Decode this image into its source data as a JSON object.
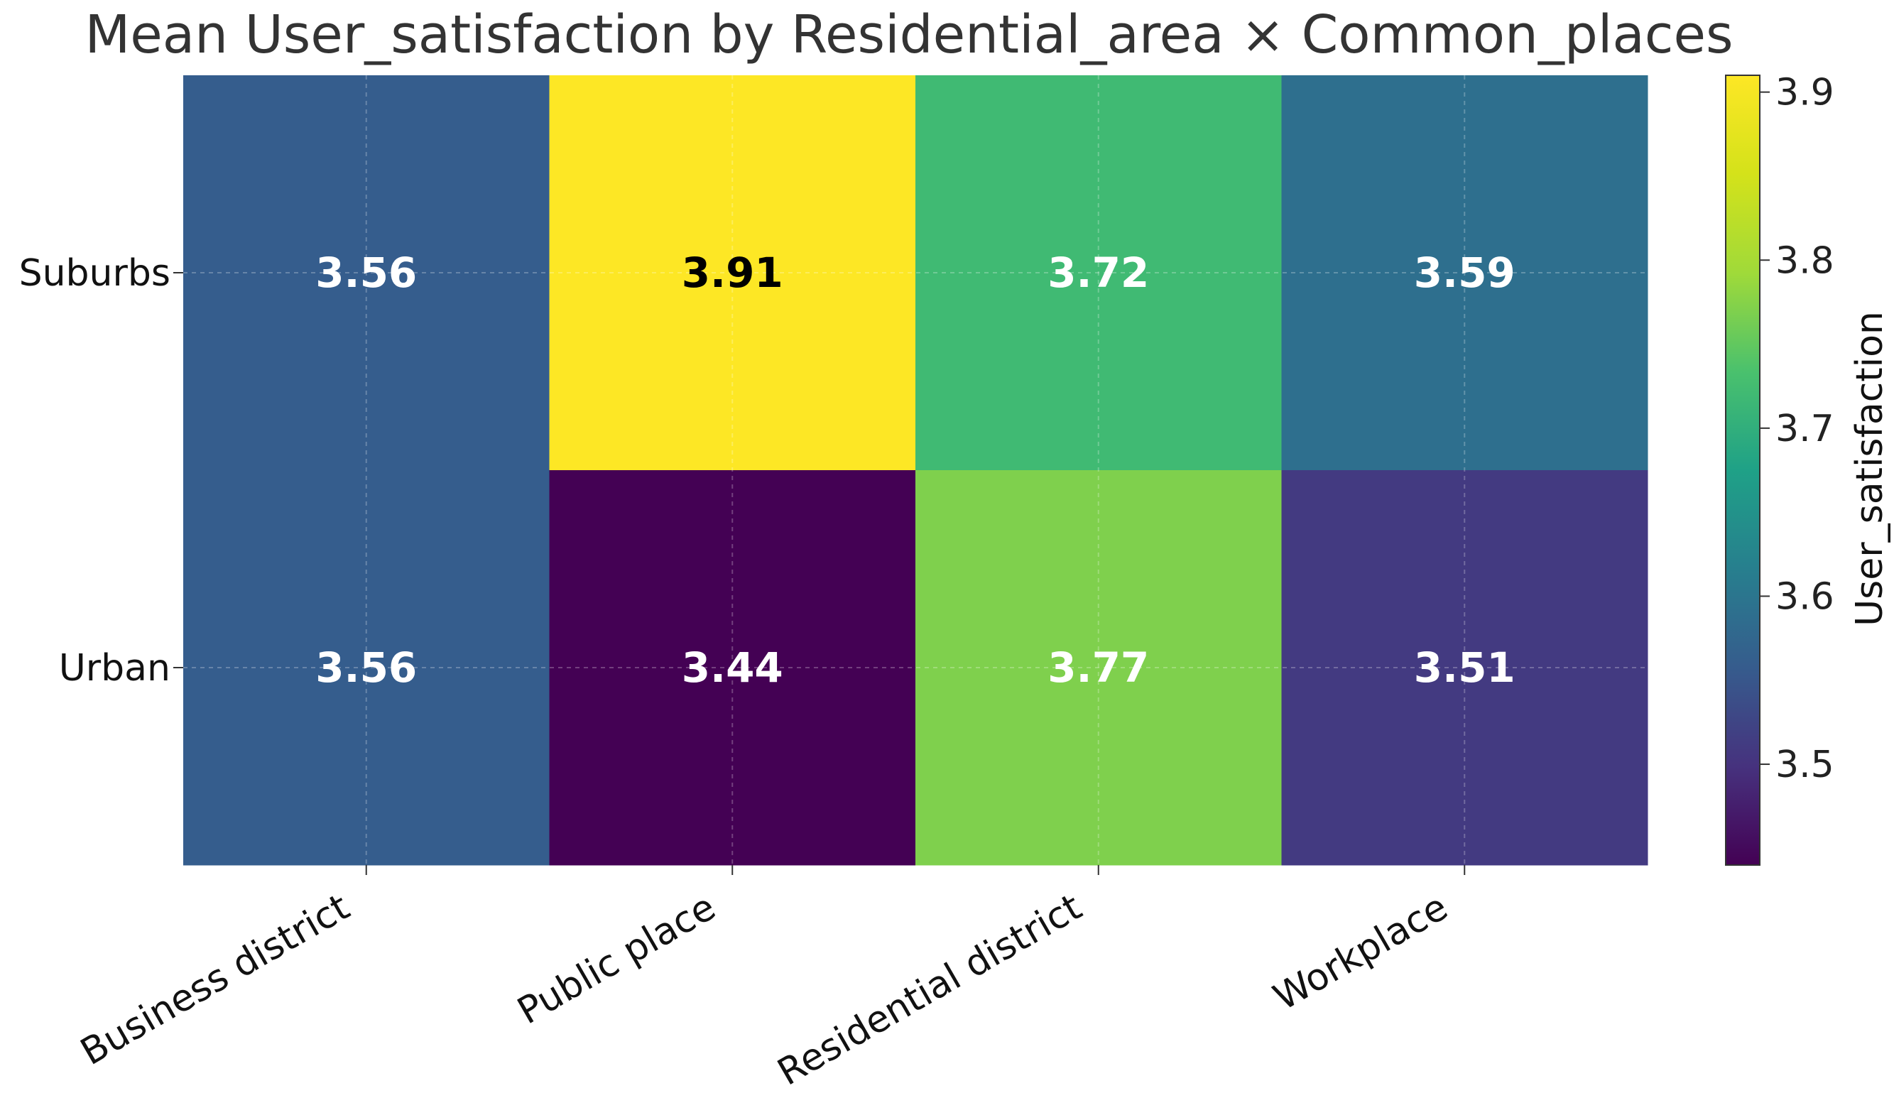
{
  "chart_data": {
    "type": "heatmap",
    "title": "Mean User_satisfaction by Residential_area × Common_places",
    "x_categories": [
      "Business district",
      "Public place",
      "Residential district",
      "Workplace"
    ],
    "y_categories": [
      "Suburbs",
      "Urban"
    ],
    "values": [
      [
        3.56,
        3.91,
        3.72,
        3.59
      ],
      [
        3.56,
        3.44,
        3.77,
        3.51
      ]
    ],
    "value_labels": [
      [
        "3.56",
        "3.91",
        "3.72",
        "3.59"
      ],
      [
        "3.56",
        "3.44",
        "3.77",
        "3.51"
      ]
    ],
    "colorbar": {
      "label": "User_satisfaction",
      "range": [
        3.44,
        3.91
      ],
      "ticks": [
        3.5,
        3.6,
        3.7,
        3.8,
        3.9
      ],
      "tick_labels": [
        "3.5",
        "3.6",
        "3.7",
        "3.8",
        "3.9"
      ],
      "colormap": "viridis"
    },
    "grid": true,
    "annotation_colors": {
      "light_text": "#ffffff",
      "dark_text": "#000000"
    }
  }
}
